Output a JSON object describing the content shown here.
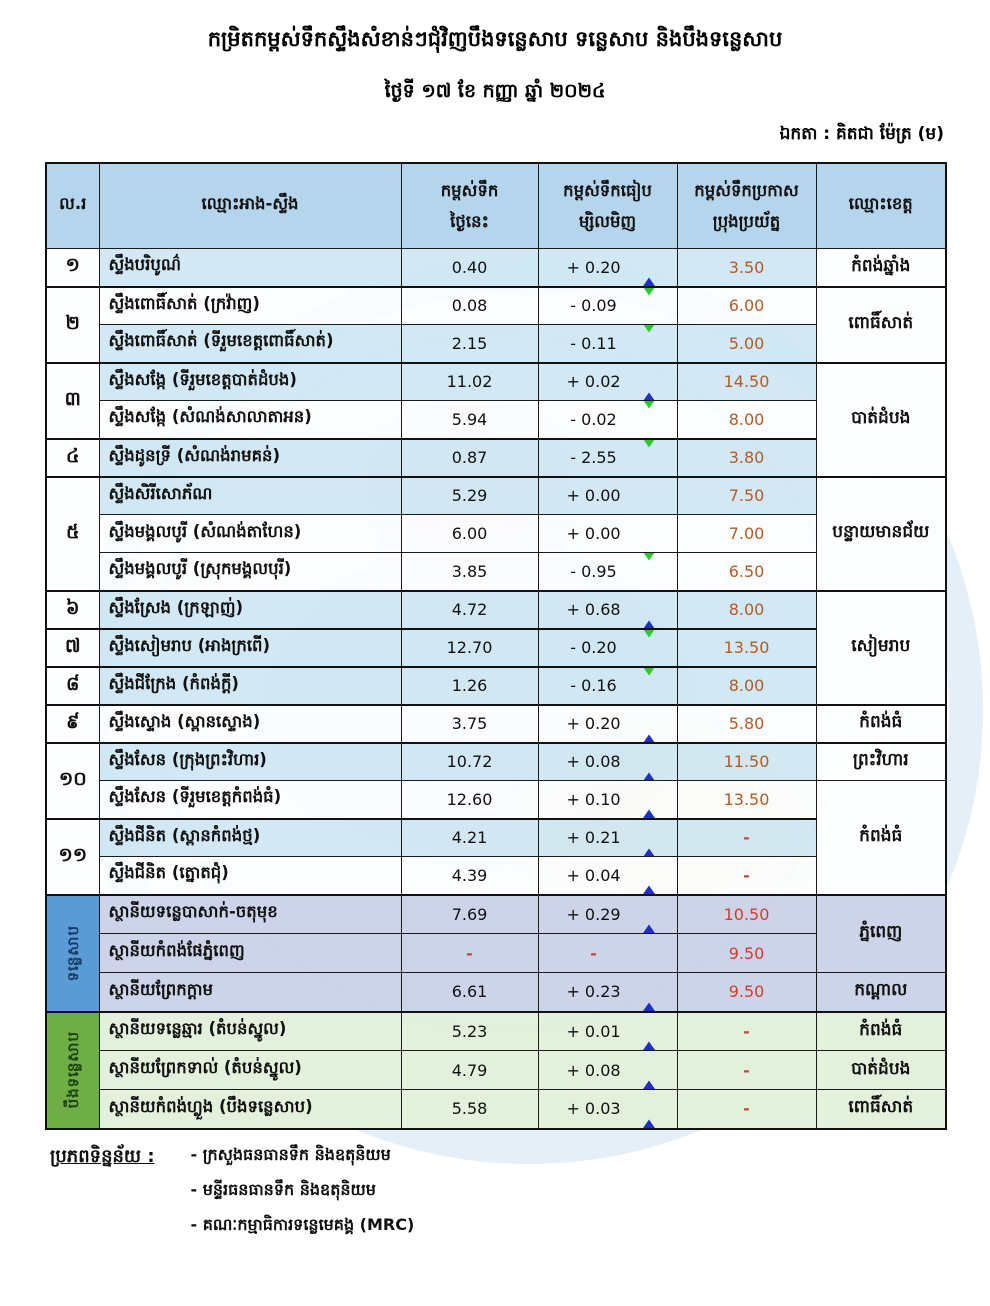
{
  "title": "កម្រិតកម្ពស់ទឹកស្ទឹងសំខាន់ៗជុំវិញបឹងទន្លេសាប ទន្លេសាប និងបឹងទន្លេសាប",
  "date_line": "ថ្ងៃទី ១៧ ខែ កញ្ញា ឆ្នាំ ២០២៤",
  "unit_line": "ឯកតា : គិតជា ម៉ែត្រ (ម)",
  "colors": {
    "header_bg": "#b0d3eb",
    "row_blue": "#cee6f3",
    "row_white": "#fbfdff",
    "tonle_row_bg": "#cad2e8",
    "boeng_row_bg": "#e2efda",
    "band_tonle": "#5b9bd5",
    "band_boeng": "#6fad47",
    "alert_text_main": "#b55a24",
    "alert_text_section": "#d63a2a",
    "arrow_up": "#1d2fc4",
    "arrow_down": "#2ec82e"
  },
  "table": {
    "headers": {
      "no": "ល.រ",
      "name": "ឈ្មោះអាង-ស្ទឹង",
      "today_l1": "កម្ពស់ទឹក",
      "today_l2": "ថ្ងៃនេះ",
      "change_l1": "កម្ពស់ទឹកធៀប",
      "change_l2": "ម្សិលមិញ",
      "alert_l1": "កម្ពស់ទឹកប្រកាស",
      "alert_l2": "ប្រុងប្រយ័ត្ន",
      "province": "ឈ្មោះខេត្ត"
    },
    "side_bands": [
      {
        "label": "ទន្លេសាប",
        "rows": 3,
        "style": "tonle"
      },
      {
        "label": "បឹងទន្លេសាប",
        "rows": 3,
        "style": "boeng"
      }
    ],
    "rows": [
      {
        "no": "១",
        "no_span": 1,
        "name": "ស្ទឹងបរិបូណ៌",
        "today": "0.40",
        "change": "+ 0.20",
        "trend": "up",
        "alert": "3.50",
        "province": "កំពង់ឆ្នាំង",
        "province_span": 1,
        "section": "main",
        "shade": "blue"
      },
      {
        "no": "២",
        "no_span": 2,
        "name": "ស្ទឹងពោធិ៍សាត់ (ក្រវ៉ាញ)",
        "today": "0.08",
        "change": "- 0.09",
        "trend": "down",
        "alert": "6.00",
        "province": "ពោធិ៍សាត់",
        "province_span": 2,
        "section": "main",
        "shade": "white",
        "group_top": true
      },
      {
        "name": "ស្ទឹងពោធិ៍សាត់ (ទីរួមខេត្តពោធិ៍សាត់)",
        "today": "2.15",
        "change": "- 0.11",
        "trend": "down",
        "alert": "5.00",
        "section": "main",
        "shade": "blue"
      },
      {
        "no": "៣",
        "no_span": 2,
        "name": "ស្ទឹងសង្កែ (ទីរួមខេត្តបាត់ដំបង)",
        "today": "11.02",
        "change": "+ 0.02",
        "trend": "up",
        "alert": "14.50",
        "province": "បាត់ដំបង",
        "province_span": 3,
        "section": "main",
        "shade": "blue",
        "group_top": true
      },
      {
        "name": "ស្ទឹងសង្កែ (សំណង់សាលាតាអន)",
        "today": "5.94",
        "change": "- 0.02",
        "trend": "down",
        "alert": "8.00",
        "section": "main",
        "shade": "white"
      },
      {
        "no": "៤",
        "no_span": 1,
        "name": "ស្ទឹងដូនទ្រី (សំណង់រាមគន់)",
        "today": "0.87",
        "change": "- 2.55",
        "trend": "down",
        "alert": "3.80",
        "section": "main",
        "shade": "blue",
        "group_top": true
      },
      {
        "no": "៥",
        "no_span": 3,
        "name": "ស្ទឹងសិរីសោភ័ណ",
        "today": "5.29",
        "change": "+ 0.00",
        "trend": "none",
        "alert": "7.50",
        "province": "បន្ទាយមានជ័យ",
        "province_span": 3,
        "section": "main",
        "shade": "blue",
        "group_top": true
      },
      {
        "name": "ស្ទឹងមង្គលបូរី (សំណង់តាហែន)",
        "today": "6.00",
        "change": "+ 0.00",
        "trend": "none",
        "alert": "7.00",
        "section": "main",
        "shade": "white"
      },
      {
        "name": "ស្ទឹងមង្គលបូរី (ស្រុកមង្គលបុរី)",
        "today": "3.85",
        "change": "- 0.95",
        "trend": "down",
        "alert": "6.50",
        "section": "main",
        "shade": "white"
      },
      {
        "no": "៦",
        "no_span": 1,
        "name": "ស្ទឹងស្រែង (ក្រឡាញ់)",
        "today": "4.72",
        "change": "+ 0.68",
        "trend": "up",
        "alert": "8.00",
        "province": "សៀមរាប",
        "province_span": 3,
        "section": "main",
        "shade": "blue",
        "group_top": true
      },
      {
        "no": "៧",
        "no_span": 1,
        "name": "ស្ទឹងសៀមរាប (អាងក្រពើ)",
        "today": "12.70",
        "change": "- 0.20",
        "trend": "down",
        "alert": "13.50",
        "section": "main",
        "shade": "blue",
        "group_top": true
      },
      {
        "no": "៨",
        "no_span": 1,
        "name": "ស្ទឹងជីក្រែង (កំពង់ក្តី)",
        "today": "1.26",
        "change": "- 0.16",
        "trend": "down",
        "alert": "8.00",
        "section": "main",
        "shade": "blue",
        "group_top": true
      },
      {
        "no": "៩",
        "no_span": 1,
        "name": "ស្ទឹងស្ទោង (ស្ពានស្ទោង)",
        "today": "3.75",
        "change": "+ 0.20",
        "trend": "up",
        "alert": "5.80",
        "province": "កំពង់ធំ",
        "province_span": 1,
        "section": "main",
        "shade": "white",
        "group_top": true
      },
      {
        "no": "១០",
        "no_span": 2,
        "name": "ស្ទឹងសែន (ក្រុងព្រះវិហារ)",
        "today": "10.72",
        "change": "+ 0.08",
        "trend": "up",
        "alert": "11.50",
        "province": "ព្រះវិហារ",
        "province_span": 1,
        "section": "main",
        "shade": "blue",
        "group_top": true
      },
      {
        "name": "ស្ទឹងសែន (ទីរួមខេត្តកំពង់ធំ)",
        "today": "12.60",
        "change": "+ 0.10",
        "trend": "up",
        "alert": "13.50",
        "province": "កំពង់ធំ",
        "province_span": 3,
        "section": "main",
        "shade": "white"
      },
      {
        "no": "១១",
        "no_span": 2,
        "name": "ស្ទឹងជីនិត (ស្ពានកំពង់ថ្ម)",
        "today": "4.21",
        "change": "+ 0.21",
        "trend": "up",
        "alert": "-",
        "section": "main",
        "shade": "blue",
        "group_top": true
      },
      {
        "name": "ស្ទឹងជីនិត (ត្នោតជុំ)",
        "today": "4.39",
        "change": "+ 0.04",
        "trend": "up",
        "alert": "-",
        "section": "main",
        "shade": "white"
      },
      {
        "band": 0,
        "name": "ស្ថានីយទន្លេបាសាក់-ចតុមុខ",
        "today": "7.69",
        "change": "+ 0.29",
        "trend": "up",
        "alert": "10.50",
        "province": "ភ្នំពេញ",
        "province_span": 2,
        "section": "tonle",
        "group_top": true
      },
      {
        "name": "ស្ថានីយកំពង់ផែភ្នំពេញ",
        "today": "-",
        "change": "-",
        "trend": "none",
        "alert": "9.50",
        "section": "tonle"
      },
      {
        "name": "ស្ថានីយព្រែកក្តាម",
        "today": "6.61",
        "change": "+ 0.23",
        "trend": "up",
        "alert": "9.50",
        "province": "កណ្តាល",
        "province_span": 1,
        "section": "tonle"
      },
      {
        "band": 1,
        "name": "ស្ថានីយទន្លេឆ្មារ (តំបន់ស្នូល)",
        "today": "5.23",
        "change": "+ 0.01",
        "trend": "up",
        "alert": "-",
        "province": "កំពង់ធំ",
        "province_span": 1,
        "section": "boeng",
        "group_top": true
      },
      {
        "name": "ស្ថានីយព្រែកទាល់ (តំបន់ស្នូល)",
        "today": "4.79",
        "change": "+ 0.08",
        "trend": "up",
        "alert": "-",
        "province": "បាត់ដំបង",
        "province_span": 1,
        "section": "boeng"
      },
      {
        "name": "ស្ថានីយកំពង់ហ្លួង (បឹងទន្លេសាប)",
        "today": "5.58",
        "change": "+ 0.03",
        "trend": "up",
        "alert": "-",
        "province": "ពោធិ៍សាត់",
        "province_span": 1,
        "section": "boeng"
      }
    ]
  },
  "footer": {
    "label": "ប្រភពទិន្នន័យ :",
    "sources": [
      "- ក្រសួងធនធានទឹក និងឧតុនិយម",
      "- មន្ទីរធនធានទឹក និងឧតុនិយម",
      "- គណៈកម្មាធិការទន្លេមេគង្គ (MRC)"
    ]
  }
}
